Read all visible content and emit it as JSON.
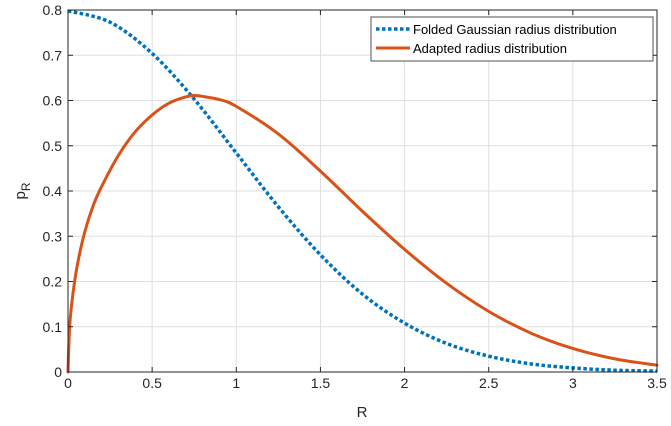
{
  "chart_data": {
    "type": "line",
    "xlabel": "R",
    "ylabel": "p",
    "ylabel_subscript": "R",
    "xlim": [
      0,
      3.5
    ],
    "ylim": [
      0,
      0.8
    ],
    "xticks": [
      "0",
      "0.5",
      "1",
      "1.5",
      "2",
      "2.5",
      "3",
      "3.5"
    ],
    "yticks": [
      "0",
      "0.1",
      "0.2",
      "0.3",
      "0.4",
      "0.5",
      "0.6",
      "0.7",
      "0.8"
    ],
    "grid": true,
    "legend_position": "top-right",
    "series": [
      {
        "name": "Folded Gaussian radius distribution",
        "color": "#0072BD",
        "style": "dotted",
        "x": [
          0,
          0.25,
          0.5,
          0.75,
          1.0,
          1.25,
          1.5,
          1.75,
          2.0,
          2.25,
          2.5,
          2.75,
          3.0,
          3.25,
          3.5
        ],
        "y": [
          0.798,
          0.773,
          0.704,
          0.603,
          0.484,
          0.365,
          0.259,
          0.172,
          0.108,
          0.063,
          0.035,
          0.018,
          0.009,
          0.004,
          0.002
        ]
      },
      {
        "name": "Adapted radius distribution",
        "color": "#D95319",
        "style": "solid",
        "x": [
          0,
          0.01,
          0.03,
          0.06,
          0.1,
          0.15,
          0.2,
          0.3,
          0.4,
          0.5,
          0.6,
          0.7,
          0.75,
          0.8,
          0.9,
          1.0,
          1.25,
          1.5,
          1.75,
          2.0,
          2.25,
          2.5,
          2.75,
          3.0,
          3.25,
          3.5
        ],
        "y": [
          0,
          0.101,
          0.175,
          0.245,
          0.31,
          0.368,
          0.41,
          0.479,
          0.531,
          0.568,
          0.594,
          0.608,
          0.611,
          0.609,
          0.602,
          0.587,
          0.526,
          0.444,
          0.355,
          0.271,
          0.196,
          0.134,
          0.086,
          0.052,
          0.029,
          0.015
        ]
      }
    ]
  }
}
